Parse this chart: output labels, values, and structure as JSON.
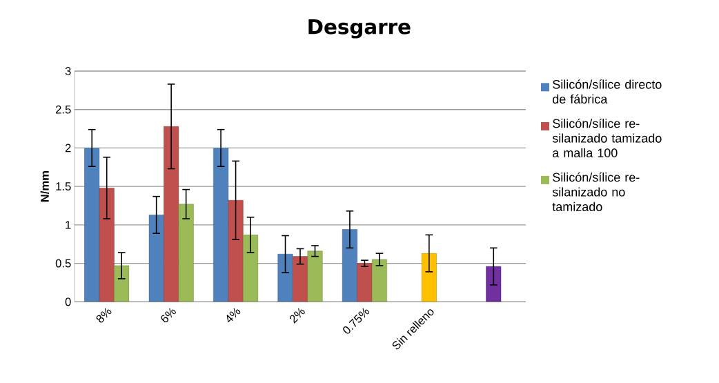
{
  "chart_data": {
    "type": "bar",
    "title": "Desgarre",
    "ylabel": "N/mm",
    "categories": [
      "8%",
      "6%",
      "4%",
      "2%",
      "0.75%",
      "Sin relleno",
      null
    ],
    "series": [
      {
        "name": "Silicón/sílice directo de fábrica",
        "color": "#4f81bd",
        "values": [
          2.0,
          1.13,
          2.0,
          0.62,
          0.94,
          null,
          null
        ],
        "errors": [
          0.24,
          0.24,
          0.24,
          0.24,
          0.24,
          null,
          null
        ]
      },
      {
        "name": "Silicón/sílice re-silanizado tamizado a malla 100",
        "color": "#c0504d",
        "values": [
          1.48,
          2.28,
          1.32,
          0.59,
          0.5,
          null,
          null
        ],
        "errors": [
          0.4,
          0.55,
          0.51,
          0.1,
          0.04,
          null,
          null
        ]
      },
      {
        "name": "Silicón/sílice re-silanizado no tamizado",
        "color": "#9bbb59",
        "values": [
          0.47,
          1.27,
          0.87,
          0.66,
          0.55,
          null,
          null
        ],
        "errors": [
          0.17,
          0.19,
          0.23,
          0.07,
          0.08,
          null,
          null
        ]
      },
      {
        "colors": [
          "#ffc000",
          "#ffc000",
          "#ffc000",
          "#ffc000",
          "#ffc000",
          "#ffc000",
          "#7030a0"
        ],
        "values": [
          null,
          null,
          null,
          null,
          null,
          0.63,
          0.46
        ],
        "errors": [
          null,
          null,
          null,
          null,
          null,
          0.24,
          0.24
        ]
      }
    ],
    "ylim": [
      0,
      3
    ],
    "yticks": [
      0,
      0.5,
      1,
      1.5,
      2,
      2.5,
      3
    ],
    "grid": "y",
    "legend": "right"
  }
}
